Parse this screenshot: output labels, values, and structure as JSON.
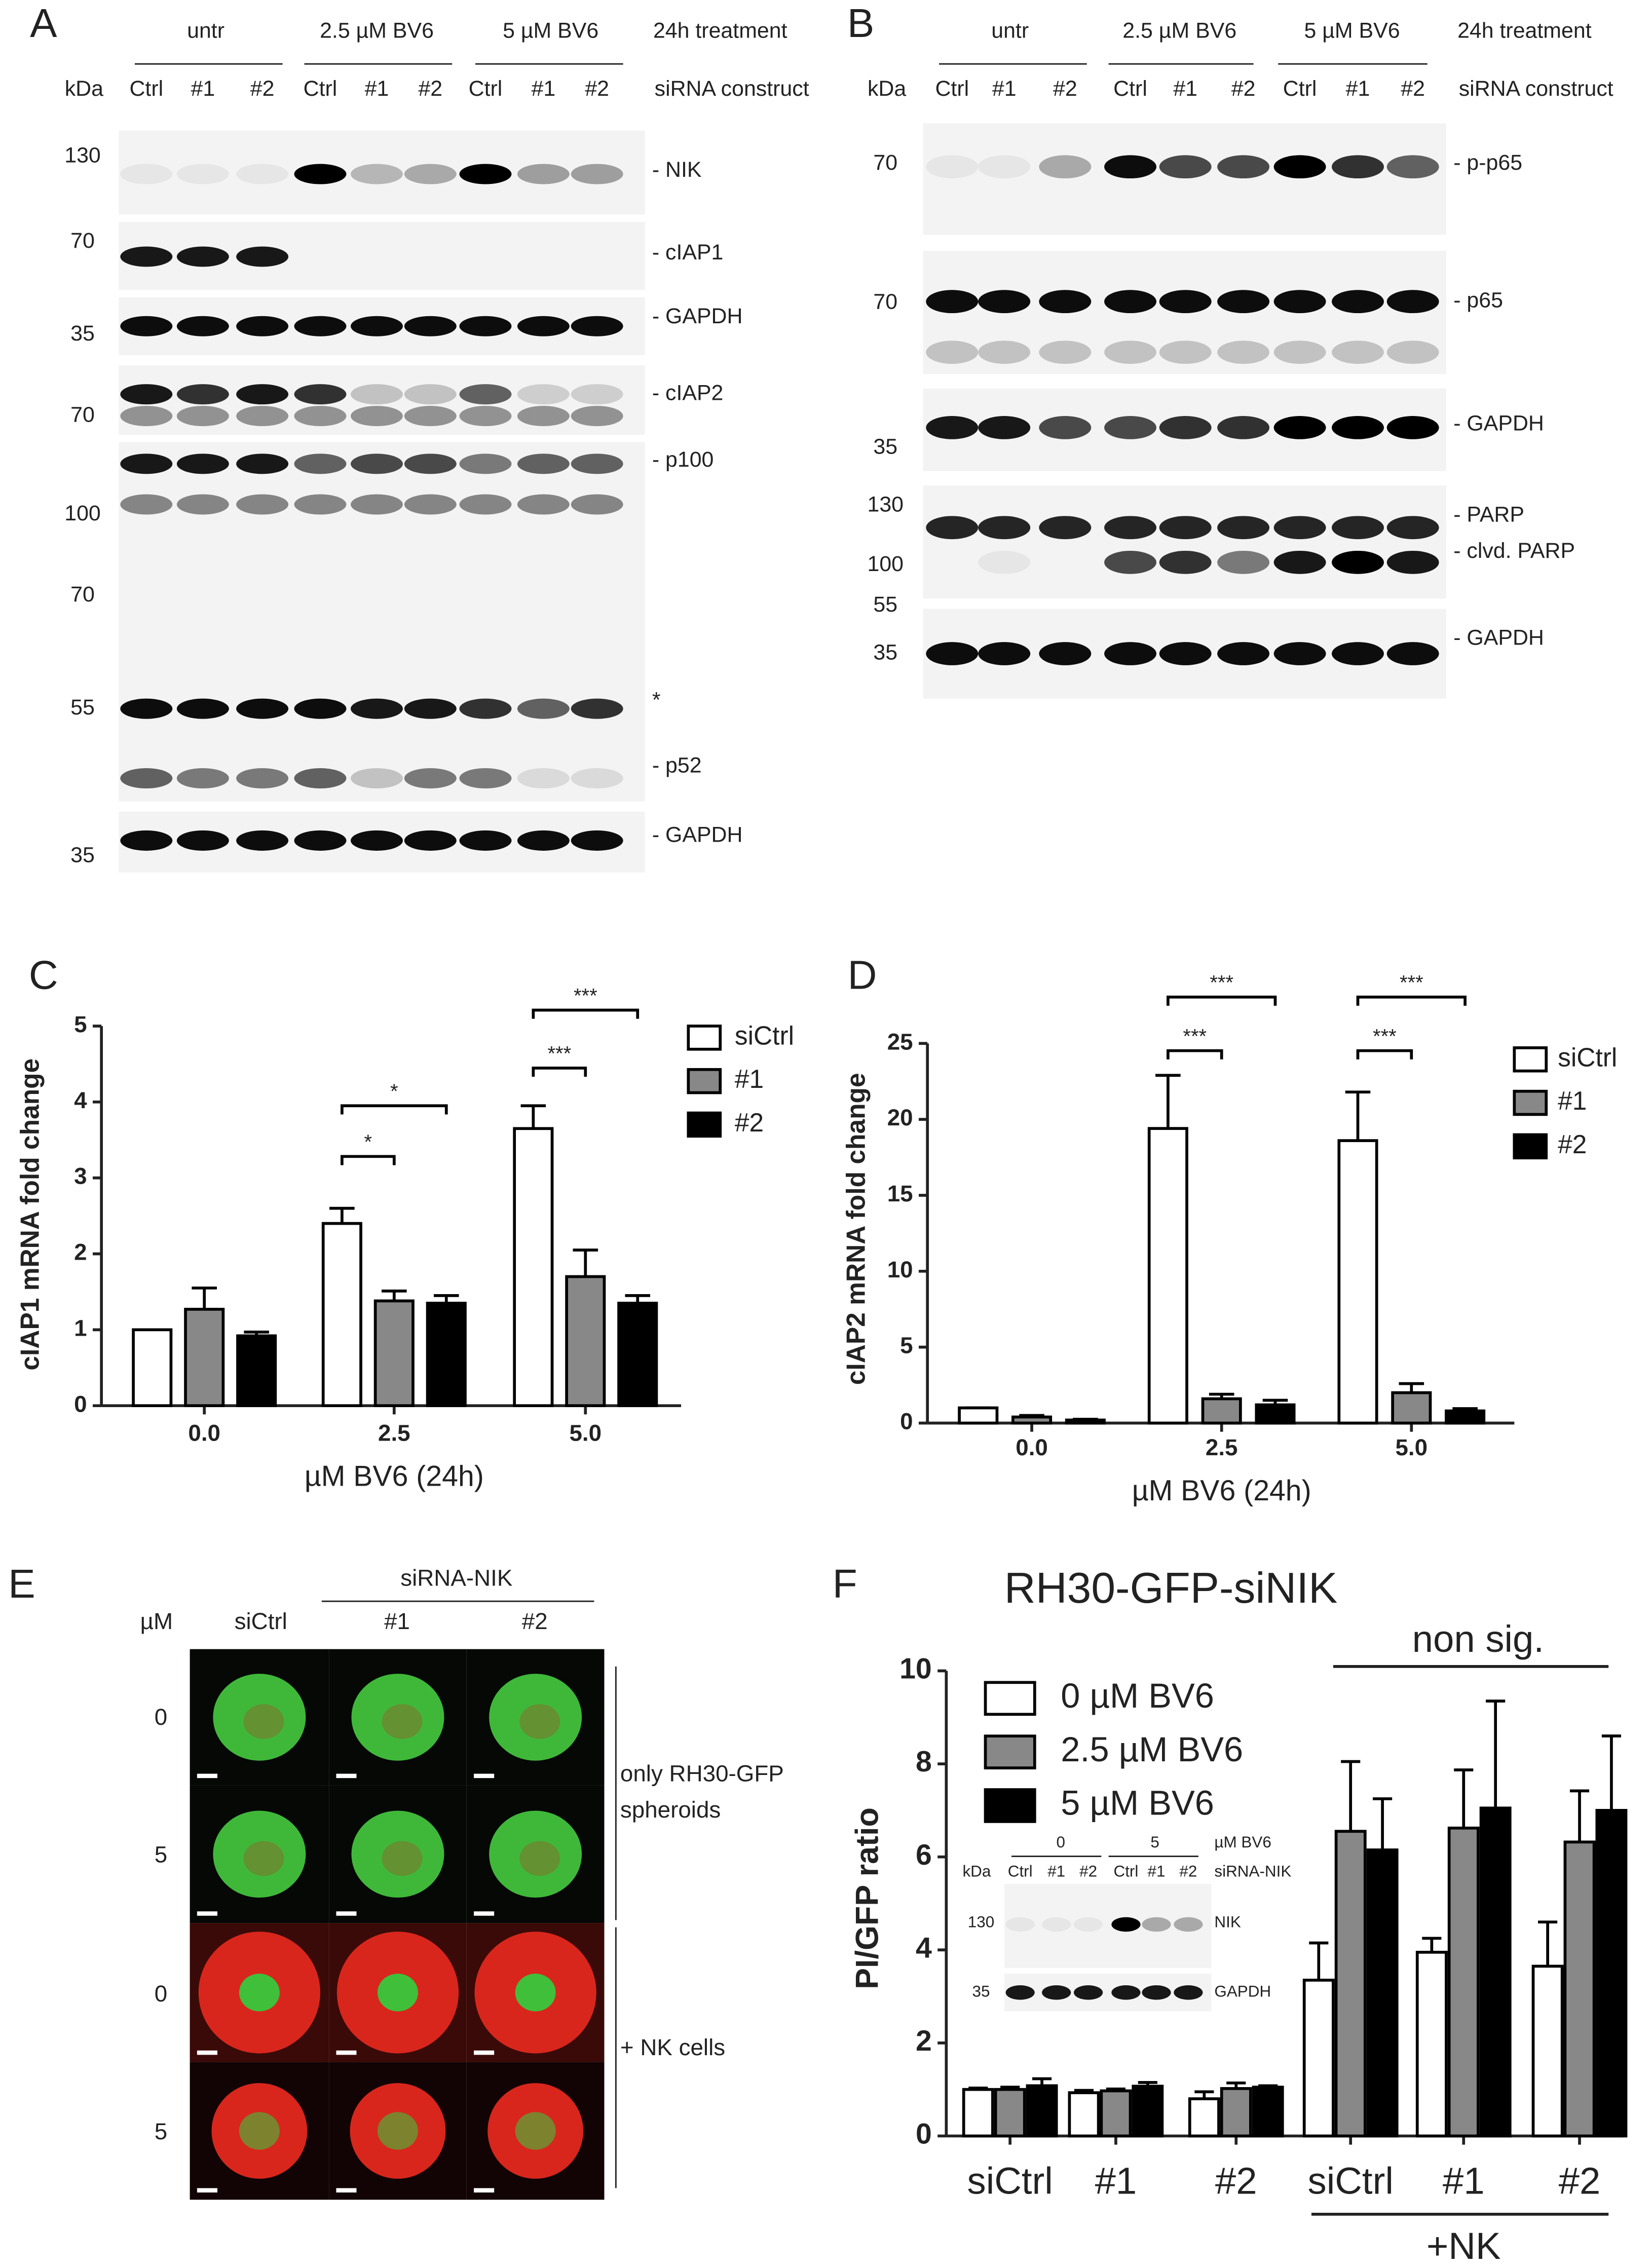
{
  "panel_letters": [
    "A",
    "B",
    "C",
    "D",
    "E",
    "F"
  ],
  "blot_a": {
    "treatments": [
      "untr",
      "2.5 µM BV6",
      "5 µM BV6"
    ],
    "treatment_label": "24h treatment",
    "kda_label": "kDa",
    "lanes": [
      "Ctrl",
      "#1",
      "#2",
      "Ctrl",
      "#1",
      "#2",
      "Ctrl",
      "#1",
      "#2"
    ],
    "lane_label": "siRNA construct",
    "markers": [
      130,
      70,
      35,
      70,
      100,
      70,
      55,
      35
    ],
    "proteins": [
      "- NIK",
      "- cIAP1",
      "- GAPDH",
      "- cIAP2",
      "- p100",
      "*",
      "- p52",
      "- GAPDH"
    ]
  },
  "blot_b": {
    "treatments": [
      "untr",
      "2.5 µM BV6",
      "5 µM BV6"
    ],
    "treatment_label": "24h treatment",
    "kda_label": "kDa",
    "lanes": [
      "Ctrl",
      "#1",
      "#2",
      "Ctrl",
      "#1",
      "#2",
      "Ctrl",
      "#1",
      "#2"
    ],
    "lane_label": "siRNA construct",
    "markers": [
      70,
      70,
      35,
      130,
      100,
      55,
      35
    ],
    "proteins": [
      "- p-p65",
      "- p65",
      "- GAPDH",
      "- PARP",
      "- clvd. PARP",
      "- GAPDH"
    ]
  },
  "spheroids": {
    "unit": "µM",
    "columns": [
      "siCtrl",
      "#1",
      "#2"
    ],
    "column_group": "siRNA-NIK",
    "rows": [
      0,
      5,
      0,
      5
    ],
    "condition_1": [
      "only RH30-GFP",
      "spheroids"
    ],
    "condition_2": "+ NK cells"
  },
  "inset_blot": {
    "treatments": [
      0,
      5
    ],
    "treatment_label": "µM BV6",
    "kda_label": "kDa",
    "lanes": [
      "Ctrl",
      "#1",
      "#2",
      "Ctrl",
      "#1",
      "#2"
    ],
    "lane_label": "siRNA-NIK",
    "markers": [
      130,
      35
    ],
    "proteins": [
      "NIK",
      "GAPDH"
    ]
  },
  "chart_data": [
    {
      "type": "bar",
      "x_label": "µM BV6 (24h)",
      "y_label": "cIAP1 mRNA fold change",
      "categories": [
        "0.0",
        "2.5",
        "5.0"
      ],
      "series": [
        {
          "name": "siCtrl",
          "color": "#ffffff",
          "values": [
            1,
            2.4,
            3.65
          ],
          "errors": [
            0,
            0.2,
            0.3
          ]
        },
        {
          "name": "#1",
          "color": "#888888",
          "values": [
            1.27,
            1.38,
            1.7
          ],
          "errors": [
            0.28,
            0.13,
            0.35
          ]
        },
        {
          "name": "#2",
          "color": "#000000",
          "values": [
            0.92,
            1.35,
            1.35
          ],
          "errors": [
            0.05,
            0.1,
            0.1
          ]
        }
      ],
      "ylim": [
        0,
        5
      ],
      "yticks": [
        0,
        1,
        2,
        3,
        4,
        5
      ],
      "significance": [
        "*",
        "*",
        "***",
        "***"
      ]
    },
    {
      "type": "bar",
      "x_label": "µM BV6 (24h)",
      "y_label": "cIAP2 mRNA fold change",
      "categories": [
        "0.0",
        "2.5",
        "5.0"
      ],
      "series": [
        {
          "name": "siCtrl",
          "color": "#ffffff",
          "values": [
            1,
            19.4,
            18.6
          ],
          "errors": [
            0,
            3.5,
            3.2
          ]
        },
        {
          "name": "#1",
          "color": "#888888",
          "values": [
            0.4,
            1.6,
            2.0
          ],
          "errors": [
            0.1,
            0.3,
            0.6
          ]
        },
        {
          "name": "#2",
          "color": "#000000",
          "values": [
            0.2,
            1.2,
            0.8
          ],
          "errors": [
            0.05,
            0.3,
            0.15
          ]
        }
      ],
      "ylim": [
        0,
        25
      ],
      "yticks": [
        0,
        5,
        10,
        15,
        20,
        25
      ],
      "significance": [
        "***",
        "***",
        "***",
        "***"
      ]
    },
    {
      "type": "bar",
      "title": "RH30-GFP-siNIK",
      "y_label": "PI/GFP ratio",
      "categories": [
        "siCtrl",
        "#1",
        "#2",
        "siCtrl",
        "#1",
        "#2"
      ],
      "series": [
        {
          "name": "0 µM BV6",
          "color": "#ffffff",
          "values": [
            1.0,
            0.93,
            0.8,
            3.35,
            3.95,
            3.65
          ],
          "errors": [
            0.03,
            0.05,
            0.15,
            0.8,
            0.3,
            0.95
          ]
        },
        {
          "name": "2.5 µM BV6",
          "color": "#888888",
          "values": [
            1.0,
            0.97,
            1.02,
            6.55,
            6.62,
            6.32
          ],
          "errors": [
            0.05,
            0.04,
            0.12,
            1.5,
            1.25,
            1.1
          ]
        },
        {
          "name": "5 µM BV6",
          "color": "#000000",
          "values": [
            1.08,
            1.07,
            1.05,
            6.15,
            7.05,
            7.0
          ],
          "errors": [
            0.15,
            0.08,
            0.03,
            1.1,
            2.3,
            1.6
          ]
        }
      ],
      "ylim": [
        0,
        10
      ],
      "yticks": [
        0,
        2,
        4,
        6,
        8,
        10
      ],
      "annotation": "non sig.",
      "group_label": "+NK"
    }
  ]
}
